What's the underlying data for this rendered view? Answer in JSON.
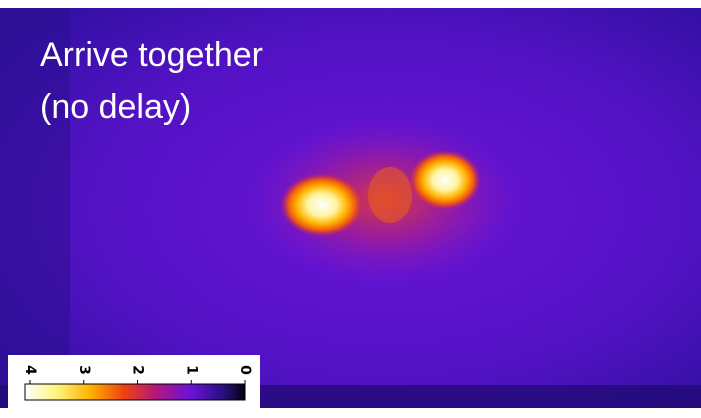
{
  "caption": {
    "lines": [
      "Arrive together",
      "(no delay)"
    ]
  },
  "colorbar": {
    "ticks": [
      4,
      3,
      2,
      1,
      0
    ]
  }
}
